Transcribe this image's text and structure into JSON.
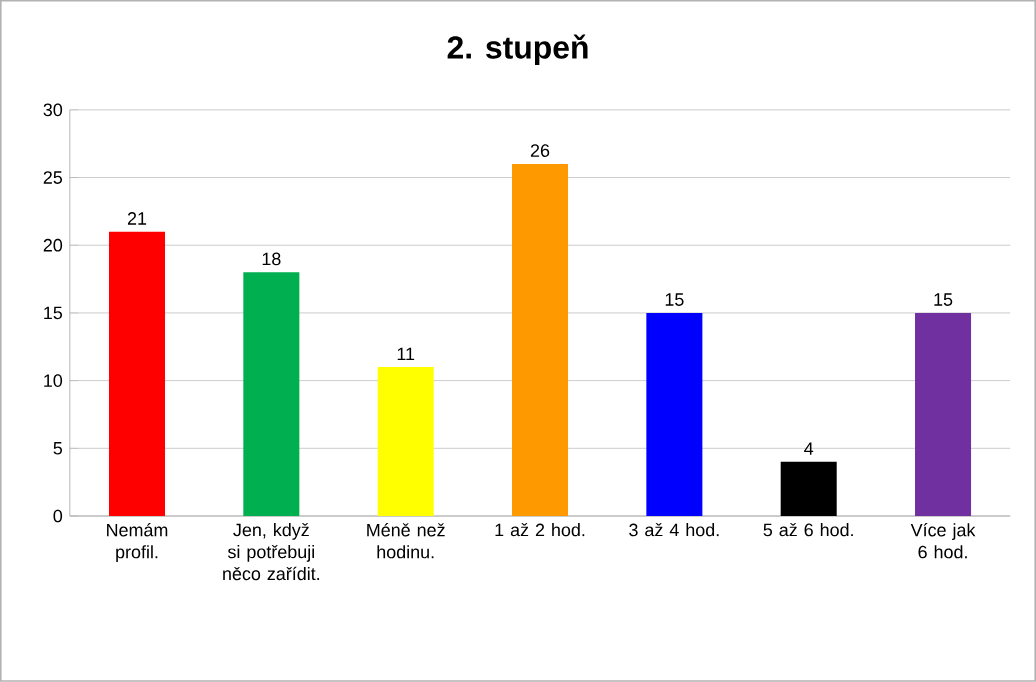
{
  "chart_data": {
    "type": "bar",
    "title": "2. stupeň",
    "categories": [
      "Nemám profil.",
      "Jen, když si potřebuji něco zařídit.",
      "Méně než hodinu.",
      "1 až 2 hod.",
      "3 až 4 hod.",
      "5 až 6 hod.",
      "Více jak 6 hod."
    ],
    "values": [
      21,
      18,
      11,
      26,
      15,
      4,
      15
    ],
    "colors": [
      "#ff0000",
      "#00b050",
      "#ffff00",
      "#ff9900",
      "#0000ff",
      "#000000",
      "#7030a0"
    ],
    "ylim": [
      0,
      30
    ],
    "yticks": [
      0,
      5,
      10,
      15,
      20,
      25,
      30
    ],
    "grid": "y",
    "data_labels": true
  }
}
